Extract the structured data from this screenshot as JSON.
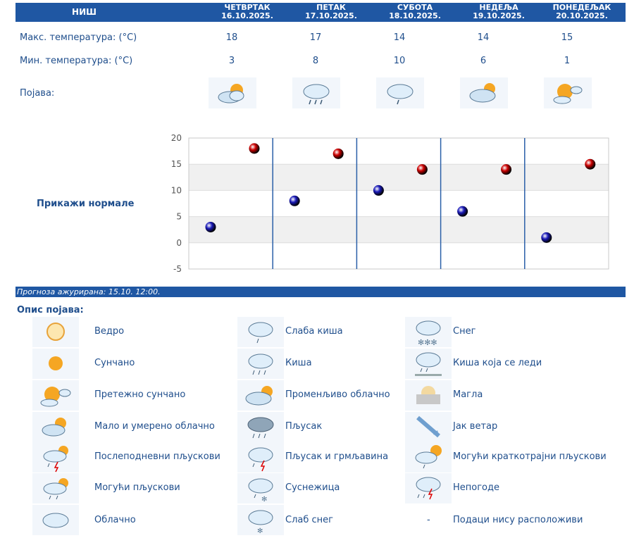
{
  "header": {
    "city": "НИШ",
    "days": [
      {
        "name": "ЧЕТВРТАК",
        "date": "16.10.2025."
      },
      {
        "name": "ПЕТАК",
        "date": "17.10.2025."
      },
      {
        "name": "СУБОТА",
        "date": "18.10.2025."
      },
      {
        "name": "НЕДЕЉА",
        "date": "19.10.2025."
      },
      {
        "name": "ПОНЕДЕЉАК",
        "date": "20.10.2025."
      }
    ]
  },
  "rows": {
    "max_label": "Макс. температура: (°C)",
    "min_label": "Мин. температура: (°C)",
    "phen_label": "Појава:"
  },
  "forecast": {
    "max": [
      "18",
      "17",
      "14",
      "14",
      "15"
    ],
    "min": [
      "3",
      "8",
      "10",
      "6",
      "1"
    ],
    "icons": [
      "partly-cloudy-icon",
      "light-rain-icon",
      "light-rain-icon",
      "variable-cloudy-icon",
      "mostly-sunny-icon"
    ]
  },
  "normals_link": "Прикажи нормале",
  "chart_data": {
    "type": "scatter",
    "categories": [
      "16.10.2025.",
      "17.10.2025.",
      "18.10.2025.",
      "19.10.2025.",
      "20.10.2025."
    ],
    "series": [
      {
        "values": [
          18,
          17,
          14,
          14,
          15
        ],
        "color": "#cc0000"
      },
      {
        "values": [
          3,
          8,
          10,
          6,
          1
        ],
        "color": "#1a1ab8"
      }
    ],
    "ylim": [
      -5,
      20
    ],
    "yticks": [
      "20",
      "15",
      "10",
      "5",
      "0",
      "-5"
    ],
    "grid": true
  },
  "updated": "Прогноза ажурирана:  15.10. 12:00.",
  "legend": {
    "title": "Опис појава:",
    "col1": [
      {
        "icon": "clear-icon",
        "label": "Ведро"
      },
      {
        "icon": "sunny-icon",
        "label": "Сунчано"
      },
      {
        "icon": "mostly-sunny-icon",
        "label": "Претежно сунчано"
      },
      {
        "icon": "partly-cloudy-icon",
        "label": "Мало и умерено облачно"
      },
      {
        "icon": "afternoon-showers-icon",
        "label": "Послеподневни пљускови"
      },
      {
        "icon": "possible-showers-icon",
        "label": "Могући пљускови"
      },
      {
        "icon": "cloudy-icon",
        "label": "Облачно"
      }
    ],
    "col2": [
      {
        "icon": "light-rain-icon",
        "label": "Слаба киша"
      },
      {
        "icon": "rain-icon",
        "label": "Киша"
      },
      {
        "icon": "variable-cloudy-icon",
        "label": "Променљиво облачно"
      },
      {
        "icon": "shower-icon",
        "label": "Пљусак"
      },
      {
        "icon": "thunderstorm-icon",
        "label": "Пљусак и грмљавина"
      },
      {
        "icon": "sleet-icon",
        "label": "Суснежица"
      },
      {
        "icon": "light-snow-icon",
        "label": "Слаб снег"
      }
    ],
    "col3": [
      {
        "icon": "snow-icon",
        "label": "Снег"
      },
      {
        "icon": "freezing-rain-icon",
        "label": "Киша која се леди"
      },
      {
        "icon": "fog-icon",
        "label": "Магла"
      },
      {
        "icon": "strong-wind-icon",
        "label": "Јак ветар"
      },
      {
        "icon": "brief-showers-icon",
        "label": "Могући краткотрајни пљускови"
      },
      {
        "icon": "storm-icon",
        "label": "Непогоде"
      },
      {
        "icon": "",
        "label": "Подаци нису расположиви",
        "dash": "-"
      }
    ]
  }
}
